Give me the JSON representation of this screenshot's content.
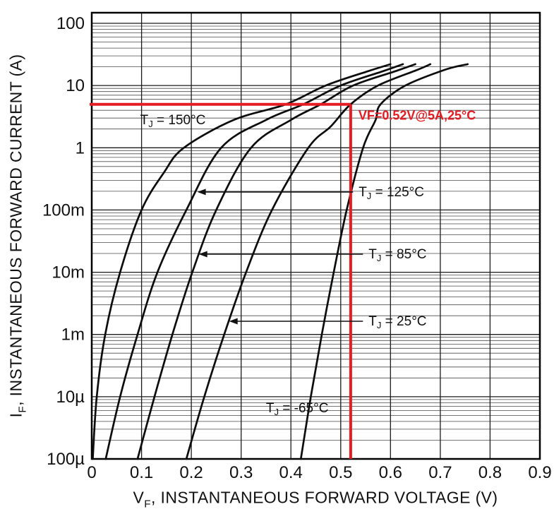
{
  "chart_data": {
    "type": "line",
    "title": "",
    "x_axis": {
      "label_main": "V",
      "label_sub": "F",
      "label_rest": ", INSTANTANEOUS FORWARD VOLTAGE (V)",
      "scale": "linear",
      "min": 0,
      "max": 0.9,
      "ticks": [
        0,
        0.1,
        0.2,
        0.3,
        0.4,
        0.5,
        0.6,
        0.7,
        0.8,
        0.9
      ],
      "tick_labels": [
        "0",
        "0.1",
        "0.2",
        "0.3",
        "0.4",
        "0.5",
        "0.6",
        "0.7",
        "0.8",
        "0.9"
      ]
    },
    "y_axis": {
      "label_main": "I",
      "label_sub": "F",
      "label_rest": ", INSTANTANEOUS FORWARD CURRENT (A)",
      "scale": "log",
      "tick_labels_top_to_bottom": [
        "100",
        "10",
        "1",
        "100m",
        "10m",
        "1m",
        "10µ",
        "100µ"
      ],
      "decades_span": 7,
      "bottom_value_amps": 1e-05,
      "headroom_decades": 0.17,
      "grid": "log-minor"
    },
    "series": [
      {
        "name": "TJ = 150°C",
        "points": [
          [
            0.002,
            1e-05
          ],
          [
            0.01,
            0.0001
          ],
          [
            0.027,
            0.001
          ],
          [
            0.057,
            0.01
          ],
          [
            0.1,
            0.1
          ],
          [
            0.145,
            0.4
          ],
          [
            0.185,
            1
          ],
          [
            0.285,
            2.8
          ],
          [
            0.39,
            5
          ],
          [
            0.47,
            10
          ],
          [
            0.555,
            17
          ],
          [
            0.6,
            22
          ]
        ]
      },
      {
        "name": "TJ = 125°C",
        "points": [
          [
            0.028,
            1e-05
          ],
          [
            0.057,
            0.0001
          ],
          [
            0.092,
            0.001
          ],
          [
            0.132,
            0.01
          ],
          [
            0.19,
            0.1
          ],
          [
            0.26,
            1
          ],
          [
            0.35,
            2.8
          ],
          [
            0.425,
            5
          ],
          [
            0.5,
            10
          ],
          [
            0.585,
            17
          ],
          [
            0.625,
            22
          ]
        ]
      },
      {
        "name": "TJ = 85°C",
        "points": [
          [
            0.092,
            1e-05
          ],
          [
            0.126,
            0.0001
          ],
          [
            0.162,
            0.001
          ],
          [
            0.202,
            0.01
          ],
          [
            0.25,
            0.1
          ],
          [
            0.32,
            1
          ],
          [
            0.4,
            2.8
          ],
          [
            0.46,
            5
          ],
          [
            0.525,
            10
          ],
          [
            0.61,
            17
          ],
          [
            0.65,
            22
          ]
        ]
      },
      {
        "name": "TJ = 25°C",
        "points": [
          [
            0.19,
            1e-05
          ],
          [
            0.226,
            0.0001
          ],
          [
            0.266,
            0.001
          ],
          [
            0.31,
            0.01
          ],
          [
            0.362,
            0.1
          ],
          [
            0.435,
            1
          ],
          [
            0.48,
            2.2
          ],
          [
            0.52,
            5
          ],
          [
            0.575,
            10
          ],
          [
            0.655,
            18
          ],
          [
            0.68,
            22
          ]
        ]
      },
      {
        "name": "TJ = -65°C",
        "points": [
          [
            0.42,
            1e-05
          ],
          [
            0.44,
            0.0001
          ],
          [
            0.462,
            0.001
          ],
          [
            0.486,
            0.01
          ],
          [
            0.512,
            0.1
          ],
          [
            0.545,
            1
          ],
          [
            0.57,
            2.8
          ],
          [
            0.58,
            5
          ],
          [
            0.63,
            10
          ],
          [
            0.71,
            18
          ],
          [
            0.755,
            22
          ]
        ]
      }
    ],
    "series_labels": [
      {
        "pre": "T",
        "sub": "J",
        "post": " = 150°C",
        "v": 0.163,
        "amps": 2.8,
        "anchor": "middle",
        "arrow_tip_v": null
      },
      {
        "pre": "T",
        "sub": "J",
        "post": " = 125°C",
        "v": 0.536,
        "amps": 0.195,
        "anchor": "start",
        "arrow_tip_v": 0.212
      },
      {
        "pre": "T",
        "sub": "J",
        "post": " = 85°C",
        "v": 0.556,
        "amps": 0.0195,
        "anchor": "start",
        "arrow_tip_v": 0.215
      },
      {
        "pre": "T",
        "sub": "J",
        "post": " = 25°C",
        "v": 0.556,
        "amps": 0.00163,
        "anchor": "start",
        "arrow_tip_v": 0.276
      },
      {
        "pre": "T",
        "sub": "J",
        "post": " = -65°C",
        "v": 0.35,
        "amps": 6.6e-05,
        "anchor": "start",
        "arrow_tip_v": null
      }
    ],
    "annotation": {
      "label": "VF=0.52V@5A,25°C",
      "vf_volts": 0.52,
      "if_amps": 5,
      "color": "#e51c23"
    },
    "colors": {
      "curve": "#0d0d0d",
      "grid_major": "#1b1b1b",
      "grid_minor": "#4a4a4a",
      "frame": "#000000",
      "annotation_red": "#e51c23",
      "text": "#111111"
    }
  }
}
